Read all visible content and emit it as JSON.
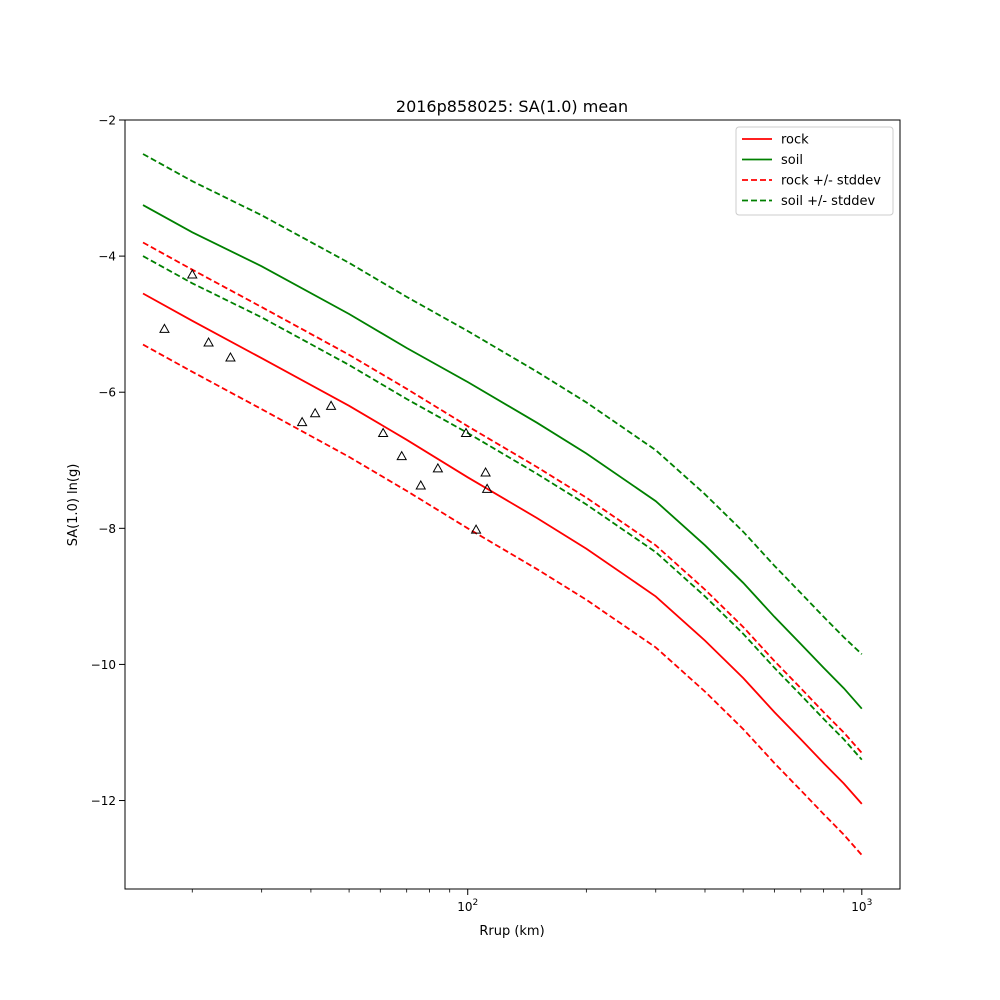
{
  "chart_data": {
    "type": "line",
    "title": "2016p858025: SA(1.0) mean",
    "xlabel": "Rrup (km)",
    "ylabel": "SA(1.0) ln(g)",
    "xscale": "log",
    "xlim": [
      13.5,
      1250
    ],
    "ylim": [
      -13.3,
      -2
    ],
    "xticks": [
      {
        "value": 100,
        "base": "10",
        "exp": "2"
      },
      {
        "value": 1000,
        "base": "10",
        "exp": "3"
      }
    ],
    "yticks": [
      -12,
      -10,
      -8,
      -6,
      -4,
      -2
    ],
    "ytick_labels": [
      "−12",
      "−10",
      "−8",
      "−6",
      "−4",
      "−2"
    ],
    "grid": false,
    "legend_position": "top-right",
    "series": [
      {
        "name": "rock",
        "color": "#ff0000",
        "style": "solid",
        "x": [
          15,
          20,
          30,
          50,
          70,
          100,
          150,
          200,
          300,
          400,
          500,
          600,
          700,
          800,
          900,
          1000
        ],
        "y": [
          -4.55,
          -4.95,
          -5.5,
          -6.2,
          -6.7,
          -7.25,
          -7.85,
          -8.3,
          -9.0,
          -9.65,
          -10.2,
          -10.7,
          -11.1,
          -11.45,
          -11.75,
          -12.05
        ]
      },
      {
        "name": "soil",
        "color": "#008000",
        "style": "solid",
        "x": [
          15,
          20,
          30,
          50,
          70,
          100,
          150,
          200,
          300,
          400,
          500,
          600,
          700,
          800,
          900,
          1000
        ],
        "y": [
          -3.25,
          -3.65,
          -4.15,
          -4.85,
          -5.35,
          -5.85,
          -6.45,
          -6.9,
          -7.6,
          -8.25,
          -8.8,
          -9.3,
          -9.7,
          -10.05,
          -10.35,
          -10.65
        ]
      },
      {
        "name": "rock +/- stddev",
        "color": "#ff0000",
        "style": "dashed",
        "x": [
          15,
          20,
          30,
          50,
          70,
          100,
          150,
          200,
          300,
          400,
          500,
          600,
          700,
          800,
          900,
          1000
        ],
        "y": [
          -3.8,
          -4.2,
          -4.75,
          -5.45,
          -5.95,
          -6.5,
          -7.1,
          -7.55,
          -8.25,
          -8.9,
          -9.45,
          -9.95,
          -10.35,
          -10.7,
          -11.0,
          -11.3
        ]
      },
      {
        "name": "",
        "color": "#ff0000",
        "style": "dashed",
        "x": [
          15,
          20,
          30,
          50,
          70,
          100,
          150,
          200,
          300,
          400,
          500,
          600,
          700,
          800,
          900,
          1000
        ],
        "y": [
          -5.3,
          -5.7,
          -6.25,
          -6.95,
          -7.45,
          -8.0,
          -8.6,
          -9.05,
          -9.75,
          -10.4,
          -10.95,
          -11.45,
          -11.85,
          -12.2,
          -12.5,
          -12.8
        ]
      },
      {
        "name": "soil +/- stddev",
        "color": "#008000",
        "style": "dashed",
        "x": [
          15,
          20,
          30,
          50,
          70,
          100,
          150,
          200,
          300,
          400,
          500,
          600,
          700,
          800,
          900,
          1000
        ],
        "y": [
          -2.5,
          -2.9,
          -3.4,
          -4.1,
          -4.6,
          -5.1,
          -5.7,
          -6.15,
          -6.85,
          -7.5,
          -8.05,
          -8.55,
          -8.95,
          -9.3,
          -9.6,
          -9.85
        ]
      },
      {
        "name": "",
        "color": "#008000",
        "style": "dashed",
        "x": [
          15,
          20,
          30,
          50,
          70,
          100,
          150,
          200,
          300,
          400,
          500,
          600,
          700,
          800,
          900,
          1000
        ],
        "y": [
          -4.0,
          -4.4,
          -4.9,
          -5.6,
          -6.1,
          -6.6,
          -7.2,
          -7.65,
          -8.35,
          -9.0,
          -9.55,
          -10.05,
          -10.45,
          -10.8,
          -11.1,
          -11.4
        ]
      }
    ],
    "observations": {
      "marker": "triangle",
      "color": "#000000",
      "points": [
        {
          "x": 17,
          "y": -5.07
        },
        {
          "x": 20,
          "y": -4.27
        },
        {
          "x": 22,
          "y": -5.27
        },
        {
          "x": 25,
          "y": -5.49
        },
        {
          "x": 38,
          "y": -6.44
        },
        {
          "x": 41,
          "y": -6.31
        },
        {
          "x": 45,
          "y": -6.2
        },
        {
          "x": 61,
          "y": -6.6
        },
        {
          "x": 68,
          "y": -6.94
        },
        {
          "x": 76,
          "y": -7.37
        },
        {
          "x": 84,
          "y": -7.12
        },
        {
          "x": 99,
          "y": -6.6
        },
        {
          "x": 105,
          "y": -8.02
        },
        {
          "x": 111,
          "y": -7.18
        },
        {
          "x": 112,
          "y": -7.42
        }
      ]
    }
  }
}
